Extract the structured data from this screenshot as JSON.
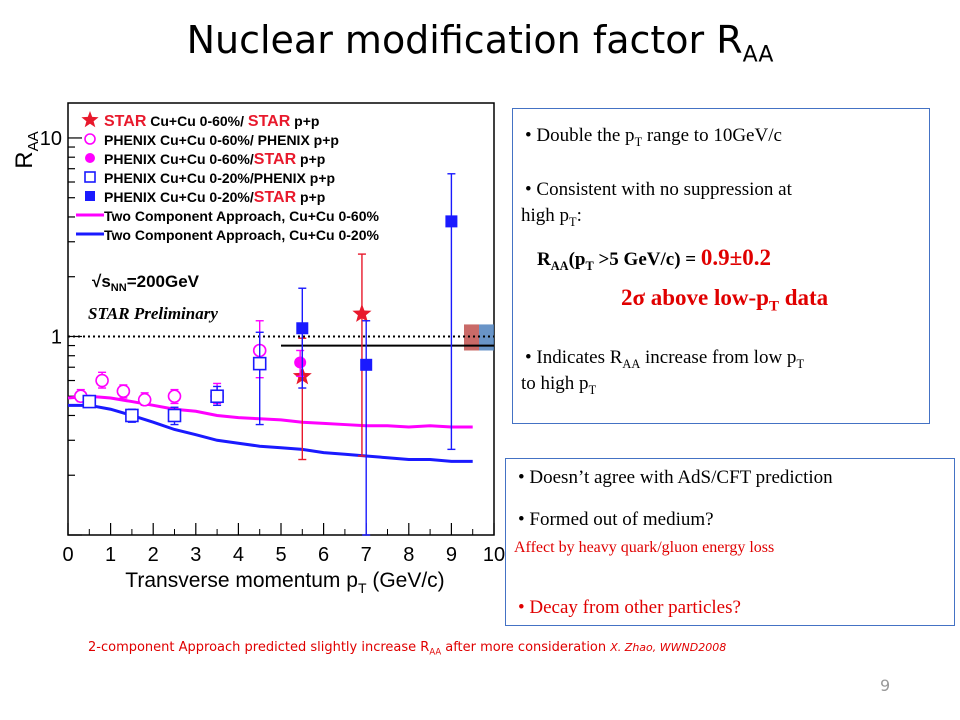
{
  "slide": {
    "title_main": "Nuclear modification factor R",
    "title_sub": "AA",
    "page_number": "9"
  },
  "box1": {
    "b1_pre": "Double the p",
    "b1_sub": "T",
    "b1_post": " range to 10GeV/c",
    "b2_l1": "Consistent with no suppression at",
    "b2_l2_pre": "high p",
    "b2_l2_sub": "T",
    "b2_l2_post": ":",
    "raa_r": "R",
    "raa_sub": "AA",
    "raa_mid": "(p",
    "raa_sub2": "T",
    "raa_post": " >5 GeV/c) = ",
    "raa_value": "0.9±0.2",
    "sigma_line_pre": "2σ above low-p",
    "sigma_line_sub": "T",
    "sigma_line_post": " data",
    "b3_l1_pre": "Indicates R",
    "b3_l1_sub": "AA",
    "b3_l1_post": " increase from low p",
    "b3_l1_sub2": "T",
    "b3_l2_pre": "to high p",
    "b3_l2_sub": "T"
  },
  "box2": {
    "b4": "Doesn’t agree with AdS/CFT prediction",
    "b5": "Formed out of medium?",
    "b5_note": "Affect by heavy quark/gluon energy loss",
    "b6": "Decay from other particles?"
  },
  "footer": {
    "pre": "2-component Approach predicted slightly increase R",
    "sub": "AA",
    "post": " after more consideration ",
    "cite": "X. Zhao, WWND2008"
  },
  "chart_data": {
    "type": "scatter",
    "xlabel_pre": "Transverse momentum p",
    "xlabel_sub": "T",
    "xlabel_post": " (GeV/c)",
    "ylabel_main": "R",
    "ylabel_sub": "AA",
    "xlim": [
      0,
      10
    ],
    "ylim": [
      0.1,
      15
    ],
    "yscale": "log",
    "xticks": [
      "0",
      "1",
      "2",
      "3",
      "4",
      "5",
      "6",
      "7",
      "8",
      "9",
      "10"
    ],
    "yticks": [
      {
        "v": 1,
        "label": "1"
      },
      {
        "v": 10,
        "label": "10"
      }
    ],
    "energy_label": "√s",
    "energy_sub": "NN",
    "energy_value": "=200GeV",
    "preliminary": "STAR Preliminary",
    "colors": {
      "star": "#e8192c",
      "phenix_cucu60": "#ff00ff",
      "phenix_cucu20": "#1a1aff",
      "model60": "#ff00ff",
      "model20": "#1a1aff"
    },
    "legend": [
      {
        "marker": "star",
        "color": "#e8192c",
        "text1": "STAR",
        "text2": " Cu+Cu 0-60%/ ",
        "text3": "STAR",
        "text4": " p+p"
      },
      {
        "marker": "open-circle",
        "color": "#ff00ff",
        "text1": "",
        "text2": "PHENIX Cu+Cu 0-60%/ PHENIX p+p",
        "text3": "",
        "text4": ""
      },
      {
        "marker": "filled-circle",
        "color": "#ff00ff",
        "text1": "",
        "text2": "PHENIX Cu+Cu 0-60%/",
        "text3": "STAR",
        "text4": " p+p"
      },
      {
        "marker": "open-square",
        "color": "#1a1aff",
        "text1": "",
        "text2": "PHENIX Cu+Cu 0-20%/PHENIX p+p",
        "text3": "",
        "text4": ""
      },
      {
        "marker": "filled-square",
        "color": "#1a1aff",
        "text1": "",
        "text2": "PHENIX Cu+Cu 0-20%/",
        "text3": "STAR",
        "text4": " p+p"
      },
      {
        "marker": "line",
        "color": "#ff00ff",
        "text1": "",
        "text2": "Two Component Approach, Cu+Cu 0-60%",
        "text3": "",
        "text4": ""
      },
      {
        "marker": "line",
        "color": "#1a1aff",
        "text1": "",
        "text2": "Two Component Approach, Cu+Cu 0-20%",
        "text3": "",
        "text4": ""
      }
    ],
    "series": [
      {
        "name": "STAR Cu+Cu 0-60%/ STAR p+p",
        "marker": "star",
        "color": "#e8192c",
        "points": [
          {
            "x": 5.5,
            "y": 0.63,
            "lo": 0.24,
            "hi": 0.98
          },
          {
            "x": 6.9,
            "y": 1.3,
            "lo": 0.25,
            "hi": 2.6
          }
        ]
      },
      {
        "name": "PHENIX Cu+Cu 0-60%/ PHENIX p+p",
        "marker": "open-circle",
        "color": "#ff00ff",
        "points": [
          {
            "x": 0.3,
            "y": 0.5,
            "lo": 0.47,
            "hi": 0.54
          },
          {
            "x": 0.8,
            "y": 0.6,
            "lo": 0.55,
            "hi": 0.66
          },
          {
            "x": 1.3,
            "y": 0.53,
            "lo": 0.49,
            "hi": 0.57
          },
          {
            "x": 1.8,
            "y": 0.48,
            "lo": 0.45,
            "hi": 0.52
          },
          {
            "x": 2.5,
            "y": 0.5,
            "lo": 0.46,
            "hi": 0.54
          },
          {
            "x": 3.5,
            "y": 0.5,
            "lo": 0.46,
            "hi": 0.58
          },
          {
            "x": 4.5,
            "y": 0.85,
            "lo": 0.62,
            "hi": 1.2
          }
        ]
      },
      {
        "name": "PHENIX Cu+Cu 0-60%/ STAR p+p",
        "marker": "filled-circle",
        "color": "#ff00ff",
        "points": [
          {
            "x": 5.45,
            "y": 0.74,
            "lo": 0.63,
            "hi": 0.85
          }
        ]
      },
      {
        "name": "PHENIX Cu+Cu 0-20%/PHENIX p+p",
        "marker": "open-square",
        "color": "#1a1aff",
        "points": [
          {
            "x": 0.5,
            "y": 0.47,
            "lo": 0.44,
            "hi": 0.5
          },
          {
            "x": 1.5,
            "y": 0.4,
            "lo": 0.37,
            "hi": 0.43
          },
          {
            "x": 2.5,
            "y": 0.4,
            "lo": 0.36,
            "hi": 0.44
          },
          {
            "x": 3.5,
            "y": 0.5,
            "lo": 0.45,
            "hi": 0.56
          },
          {
            "x": 4.5,
            "y": 0.73,
            "lo": 0.36,
            "hi": 1.05
          }
        ]
      },
      {
        "name": "PHENIX Cu+Cu 0-20%/ STAR p+p",
        "marker": "filled-square",
        "color": "#1a1aff",
        "points": [
          {
            "x": 5.5,
            "y": 1.1,
            "lo": 0.55,
            "hi": 1.75
          },
          {
            "x": 7.0,
            "y": 0.72,
            "lo": 0.1,
            "hi": 1.2
          },
          {
            "x": 9.0,
            "y": 3.8,
            "lo": 0.27,
            "hi": 6.6
          }
        ]
      }
    ],
    "model_curves": [
      {
        "name": "Two Component Approach, Cu+Cu 0-60%",
        "color": "#ff00ff",
        "x": [
          0,
          0.5,
          1,
          1.5,
          2,
          2.5,
          3,
          3.5,
          4,
          4.5,
          5,
          5.5,
          6,
          6.5,
          7,
          7.5,
          8,
          8.5,
          9,
          9.5
        ],
        "y": [
          0.49,
          0.5,
          0.49,
          0.47,
          0.45,
          0.43,
          0.42,
          0.4,
          0.39,
          0.385,
          0.38,
          0.37,
          0.365,
          0.36,
          0.355,
          0.355,
          0.35,
          0.355,
          0.35,
          0.35
        ]
      },
      {
        "name": "Two Component Approach, Cu+Cu 0-20%",
        "color": "#1a1aff",
        "x": [
          0,
          0.5,
          1,
          1.5,
          2,
          2.5,
          3,
          3.5,
          4,
          4.5,
          5,
          5.5,
          6,
          6.5,
          7,
          7.5,
          8,
          8.5,
          9,
          9.5
        ],
        "y": [
          0.45,
          0.45,
          0.43,
          0.4,
          0.37,
          0.34,
          0.32,
          0.3,
          0.29,
          0.28,
          0.275,
          0.27,
          0.26,
          0.255,
          0.25,
          0.245,
          0.24,
          0.24,
          0.235,
          0.235
        ]
      }
    ],
    "reference_lines": [
      {
        "style": "dotted",
        "y": 1.0,
        "x_from": 0,
        "x_to": 10
      },
      {
        "style": "solid",
        "y": 0.9,
        "x_from": 5,
        "x_to": 10
      }
    ],
    "systematic_boxes": [
      {
        "color": "#c0504d",
        "y_lo": 0.85,
        "y_hi": 1.15
      },
      {
        "color": "#4f81bd",
        "y_lo": 0.85,
        "y_hi": 1.15
      }
    ]
  }
}
